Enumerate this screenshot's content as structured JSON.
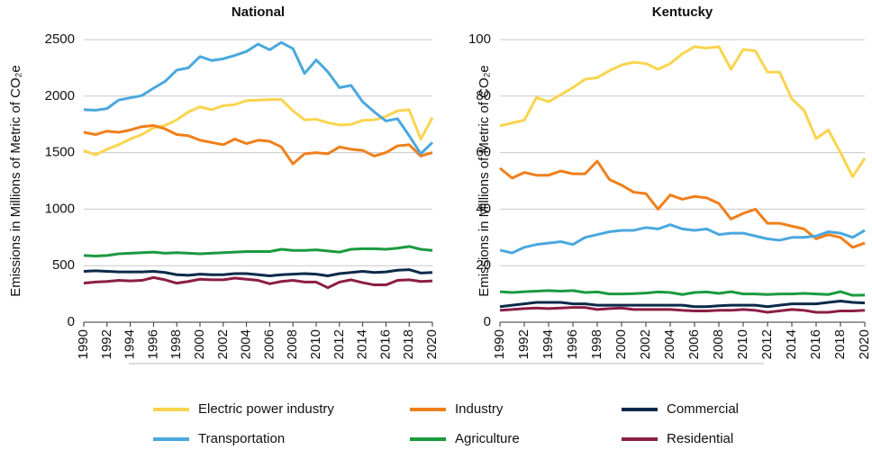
{
  "chart_data": [
    {
      "type": "line",
      "title": "National",
      "y_label": "Emissions in Millions of Metric of CO₂e",
      "x": [
        1990,
        1991,
        1992,
        1993,
        1994,
        1995,
        1996,
        1997,
        1998,
        1999,
        2000,
        2001,
        2002,
        2003,
        2004,
        2005,
        2006,
        2007,
        2008,
        2009,
        2010,
        2011,
        2012,
        2013,
        2014,
        2015,
        2016,
        2017,
        2018,
        2019,
        2020
      ],
      "xlim": [
        1990,
        2020
      ],
      "xticks": [
        1990,
        1992,
        1994,
        1996,
        1998,
        2000,
        2002,
        2004,
        2006,
        2008,
        2010,
        2012,
        2014,
        2016,
        2018,
        2020
      ],
      "ylim": [
        0,
        2500
      ],
      "yticks": [
        0,
        500,
        1000,
        1500,
        2000,
        2500
      ],
      "grid": true,
      "series": [
        {
          "name": "Electric power industry",
          "color": "#f9d44e",
          "values": [
            1520,
            1480,
            1530,
            1570,
            1620,
            1660,
            1720,
            1740,
            1790,
            1860,
            1905,
            1880,
            1915,
            1925,
            1960,
            1965,
            1970,
            1970,
            1870,
            1790,
            1795,
            1765,
            1745,
            1750,
            1785,
            1790,
            1820,
            1870,
            1880,
            1620,
            1810
          ]
        },
        {
          "name": "Industry",
          "color": "#f07f1a",
          "values": [
            1680,
            1660,
            1690,
            1680,
            1700,
            1730,
            1740,
            1710,
            1660,
            1650,
            1610,
            1590,
            1570,
            1620,
            1580,
            1610,
            1600,
            1550,
            1400,
            1490,
            1500,
            1490,
            1550,
            1530,
            1520,
            1470,
            1500,
            1560,
            1570,
            1470,
            1500
          ]
        },
        {
          "name": "Commercial",
          "color": "#0b2a4a",
          "values": [
            450,
            455,
            450,
            445,
            445,
            445,
            450,
            440,
            420,
            415,
            425,
            420,
            420,
            430,
            430,
            420,
            410,
            420,
            425,
            430,
            425,
            410,
            430,
            440,
            450,
            440,
            445,
            460,
            465,
            435,
            440
          ]
        },
        {
          "name": "Transportation",
          "color": "#4aa8de",
          "values": [
            1880,
            1875,
            1890,
            1965,
            1985,
            2005,
            2070,
            2130,
            2230,
            2250,
            2350,
            2315,
            2330,
            2360,
            2395,
            2460,
            2410,
            2475,
            2420,
            2200,
            2320,
            2215,
            2075,
            2095,
            1950,
            1860,
            1780,
            1800,
            1650,
            1490,
            1590
          ]
        },
        {
          "name": "Agriculture",
          "color": "#1a9a3f",
          "values": [
            590,
            585,
            590,
            605,
            610,
            615,
            620,
            610,
            615,
            610,
            605,
            610,
            615,
            620,
            625,
            625,
            625,
            645,
            635,
            635,
            640,
            630,
            620,
            645,
            650,
            650,
            645,
            655,
            670,
            645,
            635
          ]
        },
        {
          "name": "Residential",
          "color": "#8b1e44",
          "values": [
            345,
            355,
            360,
            370,
            365,
            370,
            395,
            375,
            345,
            360,
            380,
            375,
            375,
            390,
            380,
            370,
            340,
            360,
            370,
            355,
            355,
            305,
            355,
            375,
            350,
            330,
            330,
            370,
            375,
            360,
            365
          ]
        }
      ]
    },
    {
      "type": "line",
      "title": "Kentucky",
      "y_label": "Emissions in Millions of Metric of CO₂e",
      "x": [
        1990,
        1991,
        1992,
        1993,
        1994,
        1995,
        1996,
        1997,
        1998,
        1999,
        2000,
        2001,
        2002,
        2003,
        2004,
        2005,
        2006,
        2007,
        2008,
        2009,
        2010,
        2011,
        2012,
        2013,
        2014,
        2015,
        2016,
        2017,
        2018,
        2019,
        2020
      ],
      "xlim": [
        1990,
        2020
      ],
      "xticks": [
        1990,
        1992,
        1994,
        1996,
        1998,
        2000,
        2002,
        2004,
        2006,
        2008,
        2010,
        2012,
        2014,
        2016,
        2018,
        2020
      ],
      "ylim": [
        0,
        100
      ],
      "yticks": [
        0,
        20,
        40,
        60,
        80,
        100
      ],
      "grid": true,
      "series": [
        {
          "name": "Electric power industry",
          "color": "#f9d44e",
          "values": [
            69.5,
            70.5,
            71.5,
            79.5,
            78,
            80.5,
            83,
            86,
            86.5,
            89,
            91,
            92,
            91.5,
            89.5,
            91.5,
            95,
            97.5,
            97,
            97.5,
            89.5,
            96.5,
            96,
            88.5,
            88.5,
            79,
            75,
            65,
            68,
            60,
            51.5,
            58
          ]
        },
        {
          "name": "Industry",
          "color": "#f07f1a",
          "values": [
            54.5,
            51,
            53,
            52,
            52,
            53.5,
            52.5,
            52.5,
            57,
            50.5,
            48.5,
            46,
            45.5,
            40,
            45,
            43.5,
            44.5,
            44,
            42,
            36.5,
            38.5,
            40,
            35,
            35,
            34,
            33,
            29.5,
            31,
            30,
            26.5,
            28
          ]
        },
        {
          "name": "Commercial",
          "color": "#0b2a4a",
          "values": [
            5.5,
            6,
            6.5,
            7,
            7,
            7,
            6.5,
            6.5,
            6,
            6,
            6,
            6,
            6,
            6,
            6,
            6,
            5.5,
            5.5,
            5.8,
            6,
            6,
            6,
            5.5,
            6,
            6.5,
            6.5,
            6.5,
            7,
            7.5,
            7,
            6.8
          ]
        },
        {
          "name": "Transportation",
          "color": "#4aa8de",
          "values": [
            25.5,
            24.5,
            26.5,
            27.5,
            28,
            28.5,
            27.5,
            30,
            31,
            32,
            32.5,
            32.5,
            33.5,
            33,
            34.5,
            33,
            32.5,
            33,
            31,
            31.5,
            31.5,
            30.5,
            29.5,
            29,
            30,
            30,
            30.5,
            32,
            31.5,
            30,
            32.5
          ]
        },
        {
          "name": "Agriculture",
          "color": "#1a9a3f",
          "values": [
            10.8,
            10.5,
            10.8,
            11,
            11.2,
            11,
            11.2,
            10.5,
            10.7,
            10,
            10,
            10.1,
            10.3,
            10.7,
            10.5,
            9.8,
            10.5,
            10.7,
            10.2,
            10.8,
            10,
            10,
            9.8,
            10,
            10,
            10.2,
            10,
            9.8,
            10.8,
            9.5,
            9.6
          ]
        },
        {
          "name": "Residential",
          "color": "#8b1e44",
          "values": [
            4.2,
            4.5,
            4.8,
            5,
            4.8,
            5,
            5.2,
            5.2,
            4.5,
            4.8,
            5,
            4.5,
            4.5,
            4.5,
            4.5,
            4.2,
            4,
            4,
            4.2,
            4.2,
            4.5,
            4.2,
            3.5,
            4,
            4.5,
            4.2,
            3.5,
            3.5,
            4,
            4,
            4.2
          ]
        }
      ]
    }
  ]
}
